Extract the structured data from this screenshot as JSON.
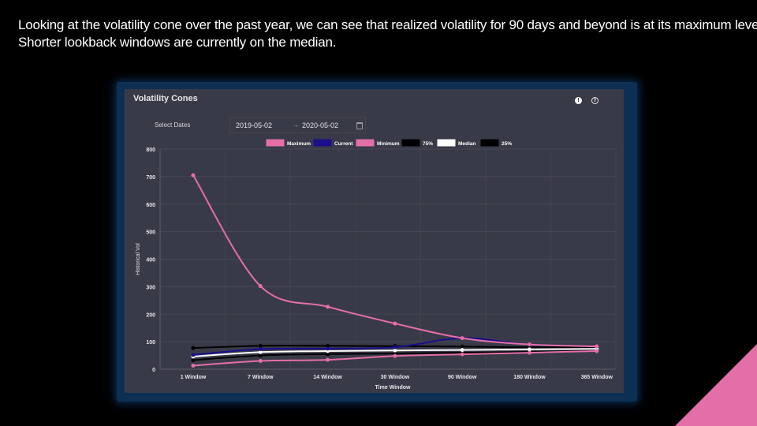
{
  "slide": {
    "line1": "Looking at the volatility cone over the past year, we can see that realized volatility for 90 days and beyond is at its maximum level.",
    "line2": "Shorter lookback windows are currently on the median."
  },
  "panel": {
    "title": "Volatility Cones",
    "select_label": "Select Dates",
    "start_date": "2019-05-02",
    "end_date": "2020-05-02",
    "arrow": "→",
    "info_icon": "info-icon",
    "help_icon": "help-icon",
    "calendar_icon": "calendar-icon"
  },
  "colors": {
    "background": "#000000",
    "panel": "#393a47",
    "accent": "#e46fa8"
  },
  "chart_data": {
    "type": "line",
    "xlabel": "Time Window",
    "ylabel": "Historical Vol",
    "ylim": [
      0,
      800
    ],
    "yticks": [
      0,
      100,
      200,
      300,
      400,
      500,
      600,
      700,
      800
    ],
    "grid": true,
    "legend_position": "top",
    "categories": [
      "1 Window",
      "7 Window",
      "14 Window",
      "30 Window",
      "90 Window",
      "180 Window",
      "365 Window"
    ],
    "series": [
      {
        "name": "Maximum",
        "color": "#e46fa8",
        "values": [
          705,
          302,
          227,
          166,
          113,
          90,
          83
        ]
      },
      {
        "name": "Current",
        "color": "#1a0f8c",
        "values": [
          52,
          73,
          75,
          80,
          113,
          90,
          83
        ]
      },
      {
        "name": "Minimum",
        "color": "#e46fa8",
        "values": [
          13,
          30,
          34,
          48,
          54,
          60,
          66
        ]
      },
      {
        "name": "75%",
        "color": "#000000",
        "values": [
          77,
          85,
          85,
          84,
          82,
          80,
          80
        ]
      },
      {
        "name": "Median",
        "color": "#ffffff",
        "values": [
          46,
          62,
          66,
          68,
          70,
          72,
          74
        ]
      },
      {
        "name": "25%",
        "color": "#000000",
        "values": [
          33,
          50,
          55,
          57,
          60,
          63,
          68
        ]
      }
    ]
  }
}
